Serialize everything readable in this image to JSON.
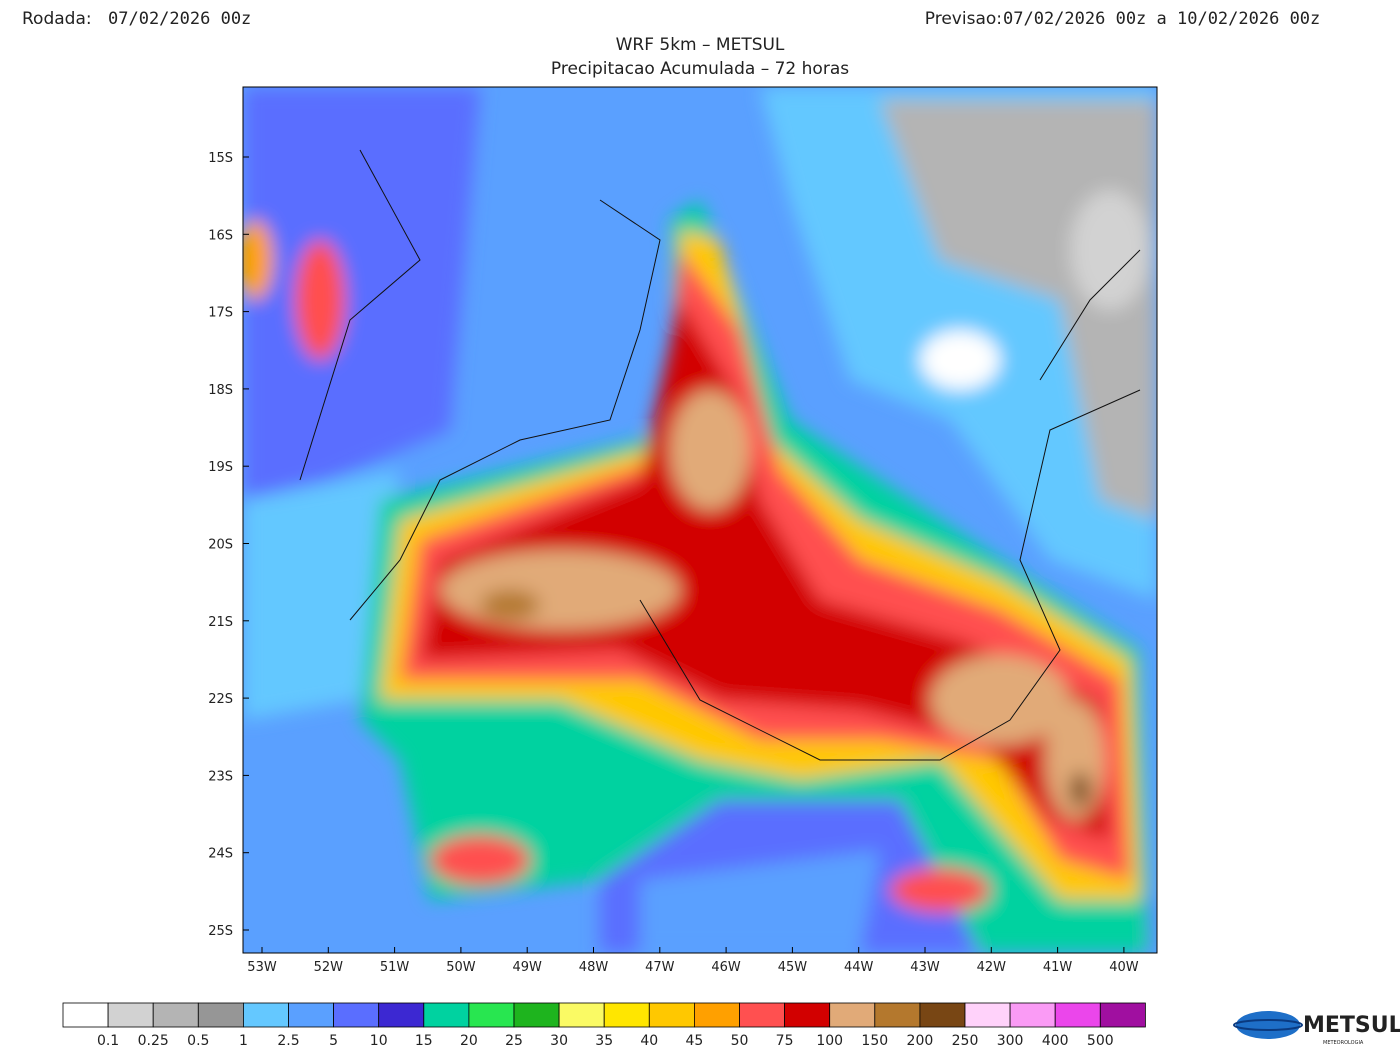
{
  "header": {
    "run_label": "Rodada:",
    "run_value": "07/02/2026 00z",
    "forecast_label": "Previsao:",
    "forecast_value": "07/02/2026 00z a 10/02/2026 00z",
    "title": "WRF 5km – METSUL",
    "subtitle": "Precipitacao Acumulada – 72 horas"
  },
  "map": {
    "lat_labels": [
      "15S",
      "16S",
      "17S",
      "18S",
      "19S",
      "20S",
      "21S",
      "22S",
      "23S",
      "24S",
      "25S"
    ],
    "lon_labels": [
      "53W",
      "52W",
      "51W",
      "50W",
      "49W",
      "48W",
      "47W",
      "46W",
      "45W",
      "44W",
      "43W",
      "42W",
      "41W",
      "40W"
    ]
  },
  "legend": {
    "colors": [
      "#ffffff",
      "#d2d2d2",
      "#b4b4b4",
      "#969696",
      "#64c8ff",
      "#5aa0ff",
      "#5a6eff",
      "#3c28d2",
      "#00d2a0",
      "#28e650",
      "#1eb41e",
      "#fafa64",
      "#ffe600",
      "#ffc800",
      "#ffa000",
      "#ff5050",
      "#d20000",
      "#e1aa78",
      "#b4782d",
      "#784614",
      "#ffd2fa",
      "#fa9bf5",
      "#eb46eb",
      "#a00fa0"
    ],
    "labels": [
      "0.1",
      "0.25",
      "0.5",
      "1",
      "2.5",
      "5",
      "10",
      "15",
      "20",
      "25",
      "30",
      "35",
      "40",
      "45",
      "50",
      "75",
      "100",
      "150",
      "200",
      "250",
      "300",
      "400",
      "500"
    ]
  },
  "logo": {
    "name": "METSUL",
    "tagline": "METEOROLOGIA"
  }
}
